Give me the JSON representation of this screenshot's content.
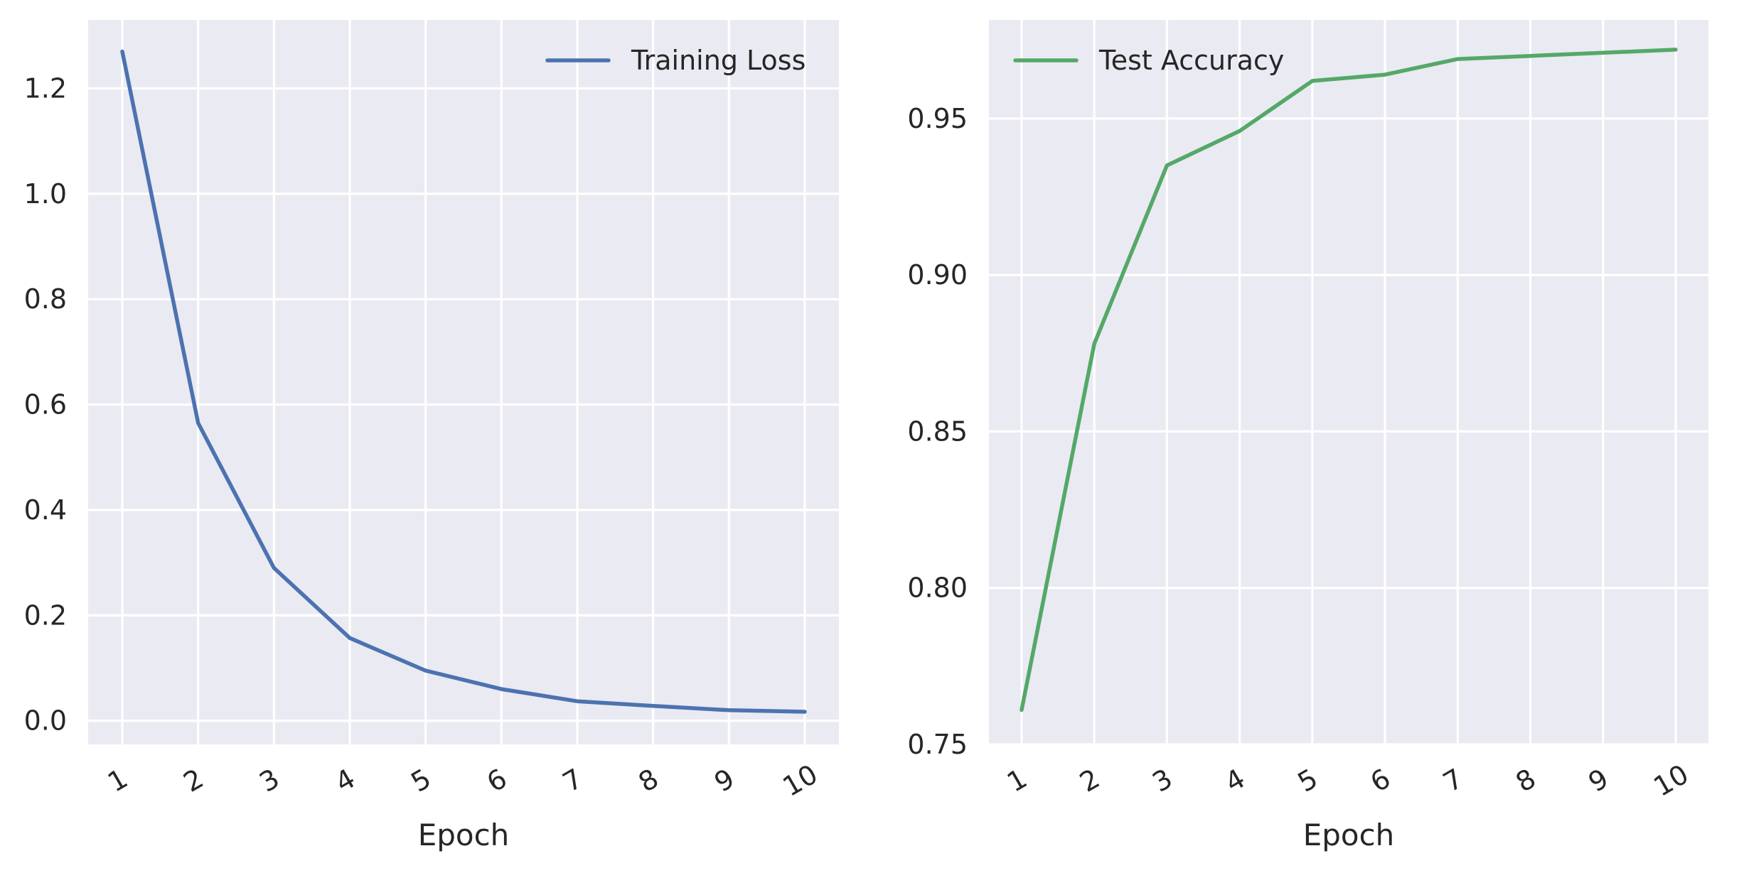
{
  "chart_data": [
    {
      "type": "line",
      "x": [
        1,
        2,
        3,
        4,
        5,
        6,
        7,
        8,
        9,
        10
      ],
      "xticks": [
        "1",
        "2",
        "3",
        "4",
        "5",
        "6",
        "7",
        "8",
        "9",
        "10"
      ],
      "xlabel": "Epoch",
      "ylabel": "",
      "title": "",
      "xlim": [
        0.55,
        10.45
      ],
      "ylim": [
        -0.045,
        1.33
      ],
      "yticks": [
        "0.0",
        "0.2",
        "0.4",
        "0.6",
        "0.8",
        "1.0",
        "1.2"
      ],
      "grid": true,
      "legend_position": "top-right",
      "series": [
        {
          "name": "Training Loss",
          "color": "#4c72b0",
          "values": [
            1.27,
            0.565,
            0.29,
            0.157,
            0.095,
            0.06,
            0.037,
            0.028,
            0.02,
            0.017
          ]
        }
      ]
    },
    {
      "type": "line",
      "x": [
        1,
        2,
        3,
        4,
        5,
        6,
        7,
        8,
        9,
        10
      ],
      "xticks": [
        "1",
        "2",
        "3",
        "4",
        "5",
        "6",
        "7",
        "8",
        "9",
        "10"
      ],
      "xlabel": "Epoch",
      "ylabel": "",
      "title": "",
      "xlim": [
        0.55,
        10.45
      ],
      "ylim": [
        0.75,
        0.9815
      ],
      "yticks": [
        "0.75",
        "0.80",
        "0.85",
        "0.90",
        "0.95"
      ],
      "grid": true,
      "legend_position": "top-left",
      "series": [
        {
          "name": "Test Accuracy",
          "color": "#55a868",
          "values": [
            0.761,
            0.878,
            0.935,
            0.946,
            0.962,
            0.964,
            0.969,
            0.97,
            0.971,
            0.972
          ]
        }
      ]
    }
  ]
}
